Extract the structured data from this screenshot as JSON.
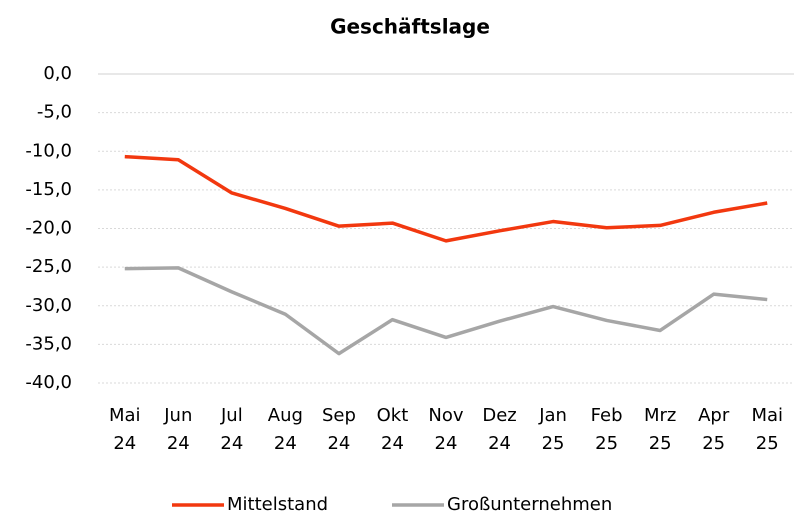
{
  "chart_data": {
    "type": "line",
    "title": "Geschäftslage",
    "categories": [
      "Mai 24",
      "Jun 24",
      "Jul 24",
      "Aug 24",
      "Sep 24",
      "Okt 24",
      "Nov 24",
      "Dez 24",
      "Jan 25",
      "Feb 25",
      "Mrz 25",
      "Apr 25",
      "Mai 25"
    ],
    "series": [
      {
        "name": "Mittelstand",
        "color": "#f2380f",
        "values": [
          -10.7,
          -11.1,
          -15.4,
          -17.4,
          -19.7,
          -19.3,
          -21.6,
          -20.3,
          -19.1,
          -19.9,
          -19.6,
          -17.9,
          -16.7
        ]
      },
      {
        "name": "Großunternehmen",
        "color": "#a6a6a6",
        "values": [
          -25.2,
          -25.1,
          -28.2,
          -31.1,
          -36.2,
          -31.8,
          -34.1,
          -32.0,
          -30.1,
          -31.9,
          -33.2,
          -28.5,
          -29.2
        ]
      }
    ],
    "ylim": [
      -40,
      0
    ],
    "yticks": [
      {
        "value": 0,
        "label": "0,0"
      },
      {
        "value": -5,
        "label": "-5,0"
      },
      {
        "value": -10,
        "label": "-10,0"
      },
      {
        "value": -15,
        "label": "-15,0"
      },
      {
        "value": -20,
        "label": "-20,0"
      },
      {
        "value": -25,
        "label": "-25,0"
      },
      {
        "value": -30,
        "label": "-30,0"
      },
      {
        "value": -35,
        "label": "-35,0"
      },
      {
        "value": -40,
        "label": "-40,0"
      }
    ],
    "grid": true,
    "legend": "bottom"
  }
}
